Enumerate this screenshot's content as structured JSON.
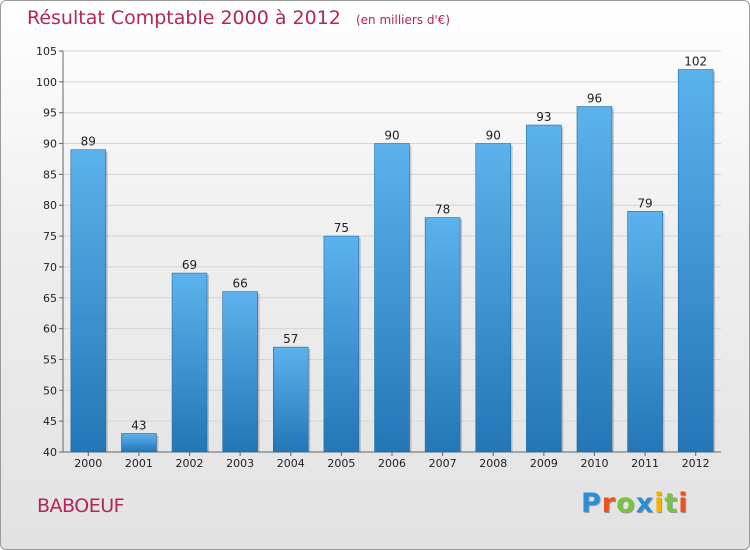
{
  "header": {
    "title": "Résultat Comptable 2000 à 2012",
    "unit": "(en milliers d'€)"
  },
  "footer": {
    "city": "BABOEUF",
    "logo": [
      "P",
      "r",
      "o",
      "x",
      "i",
      "t",
      "i"
    ]
  },
  "colors": {
    "bar_light": "#5cb2ec",
    "bar_dark": "#2476b6",
    "accent": "#b5245b"
  },
  "chart_data": {
    "type": "bar",
    "title": "Résultat Comptable 2000 à 2012",
    "subtitle": "(en milliers d'€)",
    "xlabel": "",
    "ylabel": "",
    "categories": [
      "2000",
      "2001",
      "2002",
      "2003",
      "2004",
      "2005",
      "2006",
      "2007",
      "2008",
      "2009",
      "2010",
      "2011",
      "2012"
    ],
    "values": [
      89,
      43,
      69,
      66,
      57,
      75,
      90,
      78,
      90,
      93,
      96,
      79,
      102
    ],
    "ylim": [
      40,
      105
    ],
    "yticks": [
      40,
      45,
      50,
      55,
      60,
      65,
      70,
      75,
      80,
      85,
      90,
      95,
      100,
      105
    ],
    "grid": true,
    "legend": "none"
  }
}
